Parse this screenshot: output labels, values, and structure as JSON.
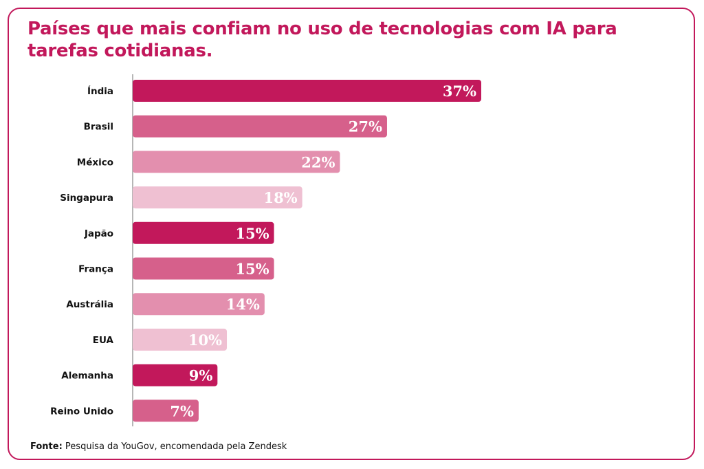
{
  "chart_data": {
    "type": "bar",
    "orientation": "horizontal",
    "title": "Países que mais confiam no uso de tecnologias com IA para tarefas cotidianas.",
    "categories": [
      "Índia",
      "Brasil",
      "México",
      "Singapura",
      "Japão",
      "França",
      "Austrália",
      "EUA",
      "Alemanha",
      "Reino Unido"
    ],
    "values": [
      37,
      27,
      22,
      18,
      15,
      15,
      14,
      10,
      9,
      7
    ],
    "value_labels": [
      "37%",
      "27%",
      "22%",
      "18%",
      "15%",
      "15%",
      "14%",
      "10%",
      "9%",
      "7%"
    ],
    "bar_colors": [
      "#c2185b",
      "#d6608b",
      "#e38fae",
      "#efc0d2",
      "#c2185b",
      "#d6608b",
      "#e38fae",
      "#efc0d2",
      "#c2185b",
      "#d6608b"
    ],
    "xlim": [
      0,
      37
    ],
    "xlabel": "",
    "ylabel": "",
    "grid": false,
    "legend": "none"
  },
  "source": {
    "label": "Fonte:",
    "text": "Pesquisa da YouGov, encomendada pela Zendesk"
  },
  "colors": {
    "accent": "#c2185b",
    "axis": "#9e9e9e",
    "value_text": "#ffffff",
    "category_text": "#111111"
  }
}
